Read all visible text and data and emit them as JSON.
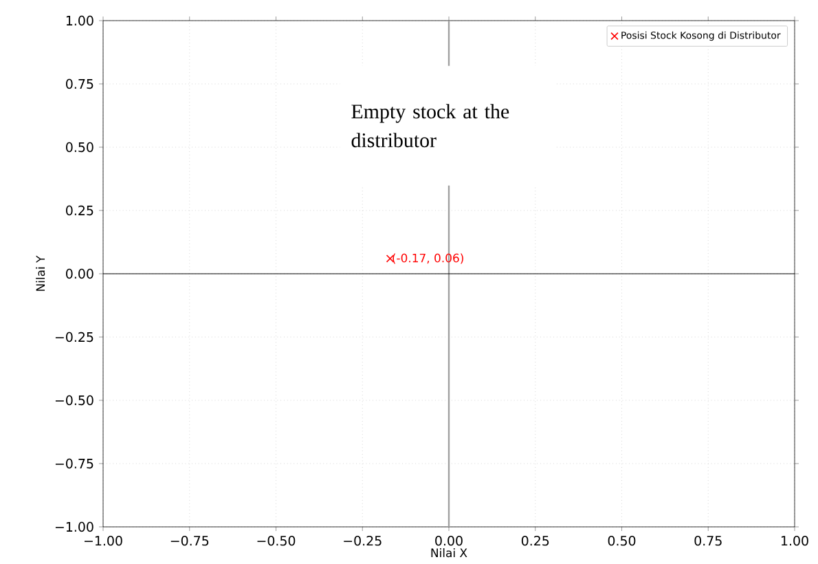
{
  "chart_data": {
    "type": "scatter",
    "xlabel": "Nilai X",
    "ylabel": "Nilai Y",
    "series": [
      {
        "name": "Posisi Stock Kosong di Distributor",
        "color": "#ff0000",
        "x": [
          -0.17
        ],
        "values": [
          0.06
        ]
      }
    ],
    "marker": "cross",
    "grid": true,
    "legend": "top right",
    "xlim": [
      -1,
      1
    ],
    "ylim": [
      -1,
      1
    ],
    "xticks": [
      {
        "value": -1,
        "label": "−1.00"
      },
      {
        "value": -0.75,
        "label": "−0.75"
      },
      {
        "value": -0.5,
        "label": "−0.50"
      },
      {
        "value": -0.25,
        "label": "−0.25"
      },
      {
        "value": 0,
        "label": "0.00"
      },
      {
        "value": 0.25,
        "label": "0.25"
      },
      {
        "value": 0.5,
        "label": "0.50"
      },
      {
        "value": 0.75,
        "label": "0.75"
      },
      {
        "value": 1,
        "label": "1.00"
      }
    ],
    "yticks": [
      {
        "value": -1,
        "label": "−1.00"
      },
      {
        "value": -0.75,
        "label": "−0.75"
      },
      {
        "value": -0.5,
        "label": "−0.50"
      },
      {
        "value": -0.25,
        "label": "−0.25"
      },
      {
        "value": 0,
        "label": "0.00"
      },
      {
        "value": 0.25,
        "label": "0.25"
      },
      {
        "value": 0.5,
        "label": "0.50"
      },
      {
        "value": 0.75,
        "label": "0.75"
      },
      {
        "value": 1,
        "label": "1.00"
      }
    ],
    "ref_lines": [
      {
        "axis": "x",
        "value": 0,
        "color": "#a0a0a0"
      },
      {
        "axis": "y",
        "value": 0,
        "color": "#000000"
      }
    ],
    "annotations": [
      "Empty stock at the distributor",
      {
        "text": "(-0.17, 0.06)",
        "x": -0.17,
        "y": 0.06
      }
    ]
  }
}
